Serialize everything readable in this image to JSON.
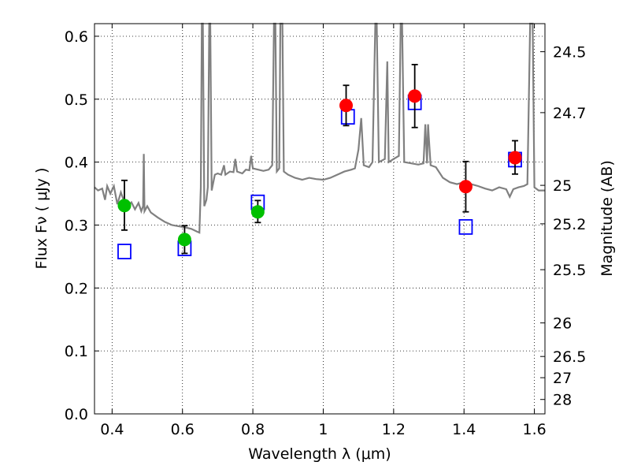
{
  "chart_data": {
    "type": "scatter",
    "xlabel": "Wavelength  λ (μm)",
    "ylabel": "Flux  Fν  ( μJy )",
    "ylabel_right": "Magnitude (AB)",
    "xlim": [
      0.35,
      1.63
    ],
    "ylim": [
      0.0,
      0.62
    ],
    "grid": true,
    "grid_style": "dotted",
    "x_ticks": [
      0.4,
      0.6,
      0.8,
      1.0,
      1.2,
      1.4,
      1.6
    ],
    "x_tick_labels": [
      "0.4",
      "0.6",
      "0.8",
      "1",
      "1.2",
      "1.4",
      "1.6"
    ],
    "y_ticks": [
      0.0,
      0.1,
      0.2,
      0.3,
      0.4,
      0.5,
      0.6
    ],
    "y_tick_labels": [
      "0.0",
      "0.1",
      "0.2",
      "0.3",
      "0.4",
      "0.5",
      "0.6"
    ],
    "right_ticks": [
      {
        "label": "24.5",
        "flux": 0.5754
      },
      {
        "label": "24.7",
        "flux": 0.4786
      },
      {
        "label": "25",
        "flux": 0.3631
      },
      {
        "label": "25.2",
        "flux": 0.302
      },
      {
        "label": "25.5",
        "flux": 0.2291
      },
      {
        "label": "26",
        "flux": 0.1445
      },
      {
        "label": "26.5",
        "flux": 0.0912
      },
      {
        "label": "27",
        "flux": 0.0575
      },
      {
        "label": "28",
        "flux": 0.0229
      }
    ],
    "colors": {
      "spectrum": "#808080",
      "green": "#00c000",
      "red": "#ff0000",
      "model_box": "#0000ff",
      "error_bar": "#000000",
      "grid": "#000000"
    },
    "series": [
      {
        "marker": "circle-green",
        "points": [
          {
            "x": 0.435,
            "y": 0.331,
            "yerr_low": 0.292,
            "yerr_high": 0.371
          },
          {
            "x": 0.606,
            "y": 0.277,
            "yerr_low": 0.255,
            "yerr_high": 0.299
          },
          {
            "x": 0.814,
            "y": 0.321,
            "yerr_low": 0.304,
            "yerr_high": 0.339
          }
        ]
      },
      {
        "marker": "circle-red",
        "points": [
          {
            "x": 1.065,
            "y": 0.49,
            "yerr_low": 0.458,
            "yerr_high": 0.522
          },
          {
            "x": 1.26,
            "y": 0.505,
            "yerr_low": 0.455,
            "yerr_high": 0.555
          },
          {
            "x": 1.405,
            "y": 0.361,
            "yerr_low": 0.321,
            "yerr_high": 0.401
          },
          {
            "x": 1.545,
            "y": 0.407,
            "yerr_low": 0.381,
            "yerr_high": 0.434
          }
        ]
      },
      {
        "marker": "square-open-blue",
        "points": [
          {
            "x": 0.435,
            "y": 0.258
          },
          {
            "x": 0.606,
            "y": 0.263
          },
          {
            "x": 0.814,
            "y": 0.336
          },
          {
            "x": 1.07,
            "y": 0.472
          },
          {
            "x": 1.26,
            "y": 0.495
          },
          {
            "x": 1.405,
            "y": 0.297
          },
          {
            "x": 1.545,
            "y": 0.404
          }
        ]
      },
      {
        "marker": "line-gray",
        "points": [
          [
            0.35,
            0.36
          ],
          [
            0.36,
            0.355
          ],
          [
            0.372,
            0.358
          ],
          [
            0.38,
            0.34
          ],
          [
            0.386,
            0.362
          ],
          [
            0.395,
            0.35
          ],
          [
            0.405,
            0.362
          ],
          [
            0.415,
            0.333
          ],
          [
            0.425,
            0.352
          ],
          [
            0.435,
            0.336
          ],
          [
            0.445,
            0.33
          ],
          [
            0.455,
            0.336
          ],
          [
            0.465,
            0.325
          ],
          [
            0.475,
            0.335
          ],
          [
            0.483,
            0.322
          ],
          [
            0.488,
            0.33
          ],
          [
            0.49,
            0.413
          ],
          [
            0.492,
            0.322
          ],
          [
            0.5,
            0.33
          ],
          [
            0.51,
            0.32
          ],
          [
            0.53,
            0.312
          ],
          [
            0.55,
            0.305
          ],
          [
            0.57,
            0.3
          ],
          [
            0.59,
            0.298
          ],
          [
            0.61,
            0.296
          ],
          [
            0.625,
            0.294
          ],
          [
            0.64,
            0.29
          ],
          [
            0.648,
            0.288
          ],
          [
            0.652,
            0.36
          ],
          [
            0.655,
            0.62
          ],
          [
            0.658,
            0.62
          ],
          [
            0.662,
            0.33
          ],
          [
            0.668,
            0.34
          ],
          [
            0.672,
            0.36
          ],
          [
            0.676,
            0.62
          ],
          [
            0.679,
            0.62
          ],
          [
            0.683,
            0.355
          ],
          [
            0.692,
            0.38
          ],
          [
            0.7,
            0.382
          ],
          [
            0.71,
            0.38
          ],
          [
            0.718,
            0.395
          ],
          [
            0.722,
            0.38
          ],
          [
            0.735,
            0.385
          ],
          [
            0.745,
            0.384
          ],
          [
            0.75,
            0.405
          ],
          [
            0.755,
            0.385
          ],
          [
            0.77,
            0.382
          ],
          [
            0.78,
            0.388
          ],
          [
            0.79,
            0.387
          ],
          [
            0.795,
            0.41
          ],
          [
            0.8,
            0.39
          ],
          [
            0.815,
            0.388
          ],
          [
            0.83,
            0.386
          ],
          [
            0.845,
            0.388
          ],
          [
            0.855,
            0.395
          ],
          [
            0.86,
            0.62
          ],
          [
            0.864,
            0.62
          ],
          [
            0.868,
            0.385
          ],
          [
            0.875,
            0.39
          ],
          [
            0.878,
            0.62
          ],
          [
            0.884,
            0.62
          ],
          [
            0.888,
            0.385
          ],
          [
            0.9,
            0.38
          ],
          [
            0.92,
            0.375
          ],
          [
            0.94,
            0.372
          ],
          [
            0.96,
            0.375
          ],
          [
            0.98,
            0.373
          ],
          [
            1.0,
            0.372
          ],
          [
            1.02,
            0.375
          ],
          [
            1.04,
            0.38
          ],
          [
            1.06,
            0.385
          ],
          [
            1.08,
            0.388
          ],
          [
            1.09,
            0.39
          ],
          [
            1.1,
            0.42
          ],
          [
            1.108,
            0.47
          ],
          [
            1.115,
            0.395
          ],
          [
            1.13,
            0.392
          ],
          [
            1.14,
            0.4
          ],
          [
            1.148,
            0.62
          ],
          [
            1.152,
            0.62
          ],
          [
            1.158,
            0.4
          ],
          [
            1.175,
            0.405
          ],
          [
            1.182,
            0.56
          ],
          [
            1.186,
            0.4
          ],
          [
            1.2,
            0.405
          ],
          [
            1.215,
            0.41
          ],
          [
            1.22,
            0.62
          ],
          [
            1.224,
            0.62
          ],
          [
            1.23,
            0.4
          ],
          [
            1.25,
            0.398
          ],
          [
            1.27,
            0.396
          ],
          [
            1.285,
            0.398
          ],
          [
            1.29,
            0.46
          ],
          [
            1.295,
            0.398
          ],
          [
            1.298,
            0.46
          ],
          [
            1.3,
            0.44
          ],
          [
            1.305,
            0.395
          ],
          [
            1.32,
            0.392
          ],
          [
            1.34,
            0.375
          ],
          [
            1.36,
            0.368
          ],
          [
            1.38,
            0.365
          ],
          [
            1.4,
            0.368
          ],
          [
            1.42,
            0.365
          ],
          [
            1.44,
            0.362
          ],
          [
            1.46,
            0.358
          ],
          [
            1.48,
            0.355
          ],
          [
            1.5,
            0.36
          ],
          [
            1.52,
            0.357
          ],
          [
            1.53,
            0.345
          ],
          [
            1.54,
            0.357
          ],
          [
            1.555,
            0.36
          ],
          [
            1.57,
            0.362
          ],
          [
            1.58,
            0.365
          ],
          [
            1.588,
            0.62
          ],
          [
            1.595,
            0.62
          ],
          [
            1.6,
            0.36
          ],
          [
            1.612,
            0.355
          ],
          [
            1.63,
            0.355
          ]
        ]
      }
    ]
  }
}
